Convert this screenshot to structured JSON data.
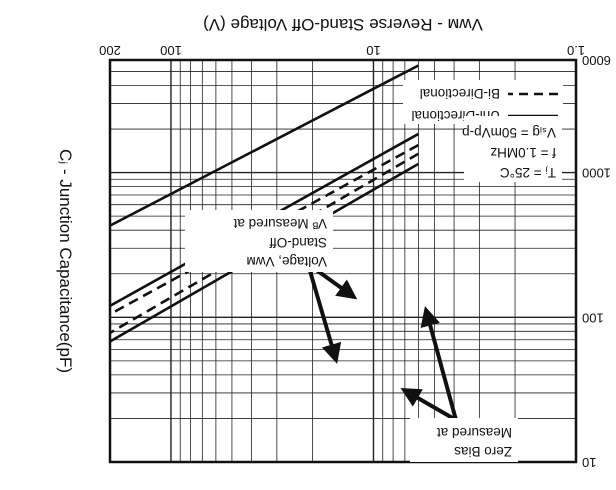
{
  "chart_data": {
    "type": "line",
    "orientation_note": "",
    "xlabel": "Vᴡᴍ - Reverse Stand-Off Voltage (V)",
    "ylabel": "Cⱼ - Junction Capacitance(pF)",
    "x_scale": "log",
    "y_scale": "log",
    "xlim": [
      1.0,
      200
    ],
    "ylim": [
      10,
      6000
    ],
    "x_ticks": [
      "1.0",
      "10",
      "100",
      "200"
    ],
    "y_ticks": [
      "10",
      "100",
      "1000",
      "6000"
    ],
    "grid": true,
    "legend_position": "top-left",
    "legend": [
      {
        "label": "Bi-Directional",
        "style": "dashed"
      },
      {
        "label": "Uni-Directional",
        "style": "solid"
      }
    ],
    "conditions": [
      "Vₛᵢɡ = 50mVp-p",
      "f = 1.0MHz",
      "Tⱼ = 25°C"
    ],
    "annotations": [
      {
        "text_lines": [
          "Vᴮ Measured at",
          "Stand-Off",
          "Voltage, Vᴡᴍ"
        ]
      },
      {
        "text_lines": [
          "Measured at",
          "Zero Bias"
        ]
      }
    ],
    "series": [
      {
        "name": "",
        "style": "solid",
        "x": [
          6,
          200
        ],
        "y": [
          5500,
          430
        ]
      },
      {
        "name": "",
        "style": "solid",
        "x": [
          6,
          200
        ],
        "y": [
          1850,
          120
        ]
      },
      {
        "name": "",
        "style": "dashed",
        "x": [
          6,
          200
        ],
        "y": [
          1550,
          105
        ]
      },
      {
        "name": "",
        "style": "dashed",
        "x": [
          6,
          200
        ],
        "y": [
          1350,
          78
        ]
      },
      {
        "name": "",
        "style": "solid",
        "x": [
          6,
          200
        ],
        "y": [
          1150,
          68
        ]
      }
    ]
  }
}
